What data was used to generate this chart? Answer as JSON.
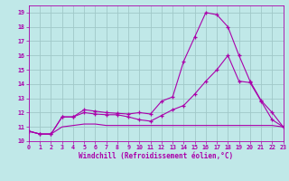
{
  "xlabel": "Windchill (Refroidissement éolien,°C)",
  "bg_color": "#c0e8e8",
  "grid_color": "#a0c8c8",
  "line_color": "#aa00aa",
  "xlim": [
    0,
    23
  ],
  "ylim": [
    10,
    19.5
  ],
  "xticks": [
    0,
    1,
    2,
    3,
    4,
    5,
    6,
    7,
    8,
    9,
    10,
    11,
    12,
    13,
    14,
    15,
    16,
    17,
    18,
    19,
    20,
    21,
    22,
    23
  ],
  "yticks": [
    10,
    11,
    12,
    13,
    14,
    15,
    16,
    17,
    18,
    19
  ],
  "s1_x": [
    0,
    1,
    2,
    3,
    4,
    5,
    6,
    7,
    8,
    9,
    10,
    11,
    12,
    13,
    14,
    15,
    16,
    17,
    18,
    19,
    20,
    21,
    22,
    23
  ],
  "s1_y": [
    10.7,
    10.5,
    10.5,
    11.7,
    11.7,
    12.2,
    12.1,
    12.0,
    11.95,
    11.9,
    12.0,
    11.9,
    12.8,
    13.1,
    15.6,
    17.3,
    19.0,
    18.85,
    18.0,
    16.0,
    14.2,
    12.85,
    12.0,
    11.0
  ],
  "s2_x": [
    0,
    1,
    2,
    3,
    4,
    5,
    6,
    7,
    8,
    9,
    10,
    11,
    12,
    13,
    14,
    15,
    16,
    17,
    18,
    19,
    20,
    21,
    22,
    23
  ],
  "s2_y": [
    10.7,
    10.5,
    10.5,
    11.7,
    11.7,
    12.0,
    11.9,
    11.85,
    11.85,
    11.7,
    11.5,
    11.4,
    11.8,
    12.2,
    12.5,
    13.3,
    14.2,
    15.0,
    16.0,
    14.2,
    14.1,
    12.8,
    11.5,
    11.0
  ],
  "s3_x": [
    0,
    1,
    2,
    3,
    4,
    5,
    6,
    7,
    8,
    9,
    10,
    11,
    12,
    13,
    14,
    15,
    16,
    17,
    18,
    19,
    20,
    21,
    22,
    23
  ],
  "s3_y": [
    10.7,
    10.5,
    10.5,
    11.0,
    11.1,
    11.2,
    11.2,
    11.1,
    11.1,
    11.1,
    11.1,
    11.1,
    11.1,
    11.1,
    11.1,
    11.1,
    11.1,
    11.1,
    11.1,
    11.1,
    11.1,
    11.1,
    11.1,
    11.0
  ]
}
